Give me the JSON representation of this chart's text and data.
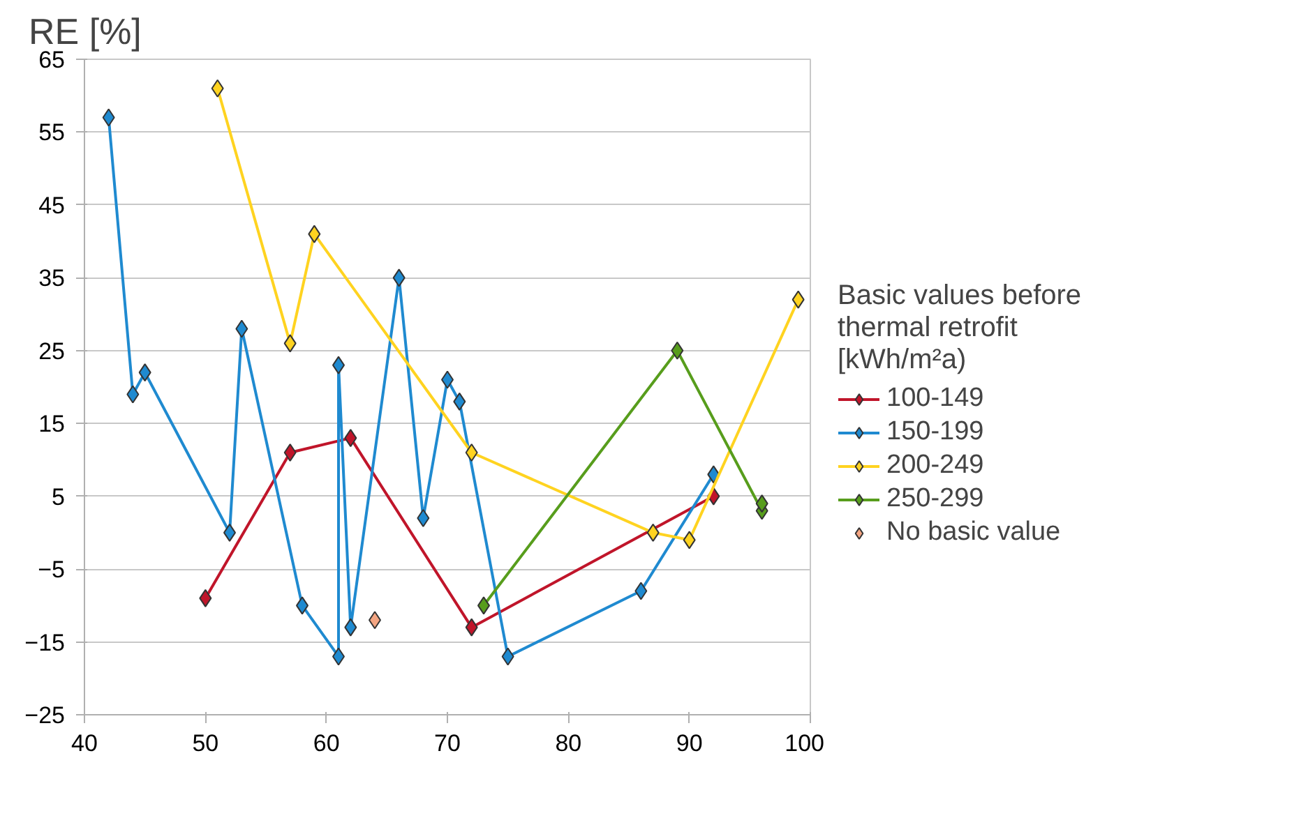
{
  "chart_data": {
    "type": "line",
    "ylabel": "RE [%]",
    "legend_title": "Basic values before thermal retrofit [kWh/m²a)",
    "xlim": [
      40,
      100
    ],
    "xticks": [
      40,
      50,
      60,
      70,
      80,
      90,
      100
    ],
    "ylim": [
      -25,
      65
    ],
    "yticks": [
      -25,
      -15,
      -5,
      5,
      15,
      25,
      35,
      45,
      55,
      65
    ],
    "grid": "y",
    "legend": "right",
    "marker": "diamond",
    "line_style": "solid",
    "series": [
      {
        "name": "100-149",
        "color": "#c0152a",
        "x": [
          50,
          57,
          62,
          72,
          92
        ],
        "values": [
          -9,
          11,
          13,
          -13,
          5
        ]
      },
      {
        "name": "150-199",
        "color": "#1f8ad0",
        "x": [
          42,
          44,
          45,
          52,
          53,
          58,
          61,
          61,
          62,
          66,
          68,
          70,
          71,
          75,
          86,
          92
        ],
        "values": [
          57,
          19,
          22,
          0,
          28,
          -10,
          -17,
          23,
          -13,
          35,
          2,
          21,
          18,
          -17,
          -8,
          8
        ]
      },
      {
        "name": "200-249",
        "color": "#ffd320",
        "x": [
          51,
          57,
          59,
          72,
          87,
          90,
          99
        ],
        "values": [
          61,
          26,
          41,
          11,
          0,
          -1,
          32
        ]
      },
      {
        "name": "250-299",
        "color": "#579d1c",
        "x": [
          73,
          89,
          96,
          96
        ],
        "values": [
          -10,
          25,
          3,
          4
        ]
      },
      {
        "name": "No basic value",
        "type": "scatter",
        "color": "#f4a582",
        "x": [
          64
        ],
        "values": [
          -12
        ]
      }
    ]
  }
}
